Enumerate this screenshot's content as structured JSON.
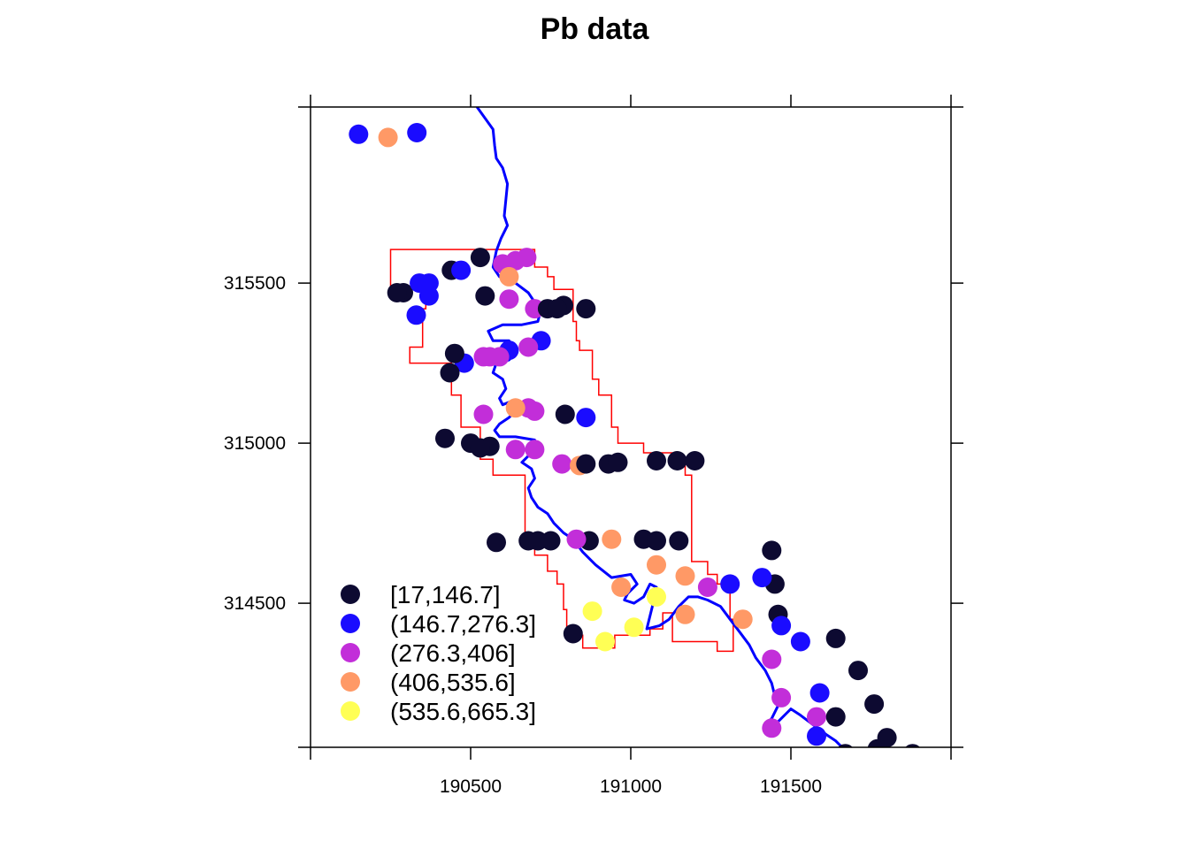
{
  "chart_data": {
    "type": "scatter",
    "title": "Pb data",
    "xlabel": "",
    "ylabel": "",
    "xlim": [
      190000,
      192000
    ],
    "ylim": [
      314050,
      316050
    ],
    "xticks": [
      190500,
      191000,
      191500
    ],
    "yticks": [
      314500,
      315000,
      315500
    ],
    "xtick_labels": [
      "190500",
      "191000",
      "191500"
    ],
    "ytick_labels": [
      "314500",
      "315000",
      "315500"
    ],
    "grid": false,
    "legend_position": "bottom-left",
    "classes": [
      {
        "label": "[17,146.7]",
        "color": "#0d0a31"
      },
      {
        "label": "(146.7,276.3]",
        "color": "#1a0cff"
      },
      {
        "label": "(276.3,406]",
        "color": "#c22ed9"
      },
      {
        "label": "(406,535.6]",
        "color": "#ff9966"
      },
      {
        "label": "(535.6,665.3]",
        "color": "#ffff55"
      }
    ],
    "points": [
      {
        "x": 190150,
        "y": 315965,
        "c": 1
      },
      {
        "x": 190332,
        "y": 315970,
        "c": 1
      },
      {
        "x": 190242,
        "y": 315955,
        "c": 3
      },
      {
        "x": 190530,
        "y": 315580,
        "c": 0
      },
      {
        "x": 190440,
        "y": 315540,
        "c": 0
      },
      {
        "x": 190290,
        "y": 315470,
        "c": 0
      },
      {
        "x": 190270,
        "y": 315470,
        "c": 0
      },
      {
        "x": 190545,
        "y": 315460,
        "c": 0
      },
      {
        "x": 190340,
        "y": 315500,
        "c": 1
      },
      {
        "x": 190370,
        "y": 315500,
        "c": 1
      },
      {
        "x": 190470,
        "y": 315540,
        "c": 1
      },
      {
        "x": 190370,
        "y": 315460,
        "c": 1
      },
      {
        "x": 190330,
        "y": 315400,
        "c": 1
      },
      {
        "x": 190600,
        "y": 315560,
        "c": 2
      },
      {
        "x": 190640,
        "y": 315570,
        "c": 2
      },
      {
        "x": 190675,
        "y": 315580,
        "c": 2
      },
      {
        "x": 190620,
        "y": 315450,
        "c": 2
      },
      {
        "x": 190700,
        "y": 315420,
        "c": 2
      },
      {
        "x": 190620,
        "y": 315520,
        "c": 3
      },
      {
        "x": 190790,
        "y": 315430,
        "c": 0
      },
      {
        "x": 190740,
        "y": 315420,
        "c": 0
      },
      {
        "x": 190770,
        "y": 315420,
        "c": 0
      },
      {
        "x": 190860,
        "y": 315420,
        "c": 0
      },
      {
        "x": 190720,
        "y": 315320,
        "c": 1
      },
      {
        "x": 190620,
        "y": 315290,
        "c": 1
      },
      {
        "x": 190480,
        "y": 315250,
        "c": 1
      },
      {
        "x": 190540,
        "y": 315270,
        "c": 2
      },
      {
        "x": 190590,
        "y": 315270,
        "c": 2
      },
      {
        "x": 190560,
        "y": 315270,
        "c": 2
      },
      {
        "x": 190680,
        "y": 315300,
        "c": 2
      },
      {
        "x": 190435,
        "y": 315220,
        "c": 0
      },
      {
        "x": 190450,
        "y": 315280,
        "c": 0
      },
      {
        "x": 190540,
        "y": 315090,
        "c": 2
      },
      {
        "x": 190680,
        "y": 315110,
        "c": 2
      },
      {
        "x": 190700,
        "y": 315100,
        "c": 2
      },
      {
        "x": 190640,
        "y": 315110,
        "c": 3
      },
      {
        "x": 190795,
        "y": 315090,
        "c": 0
      },
      {
        "x": 190860,
        "y": 315080,
        "c": 1
      },
      {
        "x": 190420,
        "y": 315015,
        "c": 0
      },
      {
        "x": 190500,
        "y": 315000,
        "c": 0
      },
      {
        "x": 190560,
        "y": 314990,
        "c": 0
      },
      {
        "x": 190530,
        "y": 314985,
        "c": 0
      },
      {
        "x": 190640,
        "y": 314980,
        "c": 2
      },
      {
        "x": 190700,
        "y": 314980,
        "c": 2
      },
      {
        "x": 190785,
        "y": 314935,
        "c": 2
      },
      {
        "x": 190840,
        "y": 314930,
        "c": 3
      },
      {
        "x": 190860,
        "y": 314935,
        "c": 0
      },
      {
        "x": 190930,
        "y": 314935,
        "c": 0
      },
      {
        "x": 190960,
        "y": 314940,
        "c": 0
      },
      {
        "x": 191080,
        "y": 314945,
        "c": 0
      },
      {
        "x": 191145,
        "y": 314945,
        "c": 0
      },
      {
        "x": 191200,
        "y": 314945,
        "c": 0
      },
      {
        "x": 190580,
        "y": 314690,
        "c": 0
      },
      {
        "x": 190680,
        "y": 314695,
        "c": 0
      },
      {
        "x": 190710,
        "y": 314695,
        "c": 0
      },
      {
        "x": 190750,
        "y": 314695,
        "c": 0
      },
      {
        "x": 190870,
        "y": 314695,
        "c": 0
      },
      {
        "x": 191040,
        "y": 314700,
        "c": 0
      },
      {
        "x": 191080,
        "y": 314695,
        "c": 0
      },
      {
        "x": 191150,
        "y": 314695,
        "c": 0
      },
      {
        "x": 190830,
        "y": 314700,
        "c": 2
      },
      {
        "x": 190940,
        "y": 314700,
        "c": 3
      },
      {
        "x": 191440,
        "y": 314665,
        "c": 0
      },
      {
        "x": 191450,
        "y": 314560,
        "c": 0
      },
      {
        "x": 191310,
        "y": 314560,
        "c": 1
      },
      {
        "x": 191410,
        "y": 314580,
        "c": 1
      },
      {
        "x": 191080,
        "y": 314620,
        "c": 3
      },
      {
        "x": 191170,
        "y": 314585,
        "c": 3
      },
      {
        "x": 190970,
        "y": 314550,
        "c": 3
      },
      {
        "x": 191240,
        "y": 314550,
        "c": 2
      },
      {
        "x": 191080,
        "y": 314520,
        "c": 4
      },
      {
        "x": 190880,
        "y": 314475,
        "c": 4
      },
      {
        "x": 191010,
        "y": 314425,
        "c": 4
      },
      {
        "x": 190920,
        "y": 314380,
        "c": 4
      },
      {
        "x": 191170,
        "y": 314465,
        "c": 3
      },
      {
        "x": 191350,
        "y": 314450,
        "c": 3
      },
      {
        "x": 190820,
        "y": 314405,
        "c": 0
      },
      {
        "x": 191460,
        "y": 314465,
        "c": 0
      },
      {
        "x": 191470,
        "y": 314430,
        "c": 1
      },
      {
        "x": 191530,
        "y": 314380,
        "c": 1
      },
      {
        "x": 191640,
        "y": 314390,
        "c": 0
      },
      {
        "x": 191710,
        "y": 314290,
        "c": 0
      },
      {
        "x": 191440,
        "y": 314325,
        "c": 2
      },
      {
        "x": 191470,
        "y": 314205,
        "c": 2
      },
      {
        "x": 191580,
        "y": 314145,
        "c": 2
      },
      {
        "x": 191440,
        "y": 314110,
        "c": 2
      },
      {
        "x": 191590,
        "y": 314220,
        "c": 1
      },
      {
        "x": 191580,
        "y": 314085,
        "c": 1
      },
      {
        "x": 191500,
        "y": 314015,
        "c": 1
      },
      {
        "x": 191640,
        "y": 314145,
        "c": 0
      },
      {
        "x": 191760,
        "y": 314185,
        "c": 0
      },
      {
        "x": 191800,
        "y": 314080,
        "c": 0
      },
      {
        "x": 191770,
        "y": 314045,
        "c": 0
      },
      {
        "x": 191670,
        "y": 314030,
        "c": 0
      },
      {
        "x": 191880,
        "y": 314030,
        "c": 0
      }
    ],
    "river": [
      [
        190520,
        316050
      ],
      [
        190570,
        315980
      ],
      [
        190575,
        315930
      ],
      [
        190580,
        315890
      ],
      [
        190600,
        315860
      ],
      [
        190615,
        315810
      ],
      [
        190610,
        315760
      ],
      [
        190605,
        315710
      ],
      [
        190615,
        315680
      ],
      [
        190595,
        315640
      ],
      [
        190580,
        315600
      ],
      [
        190570,
        315550
      ],
      [
        190590,
        315520
      ],
      [
        190640,
        315500
      ],
      [
        190680,
        315470
      ],
      [
        190700,
        315440
      ],
      [
        190720,
        315420
      ],
      [
        190710,
        315380
      ],
      [
        190660,
        315370
      ],
      [
        190600,
        315370
      ],
      [
        190555,
        315350
      ],
      [
        190570,
        315320
      ],
      [
        190620,
        315320
      ],
      [
        190645,
        315290
      ],
      [
        190620,
        315260
      ],
      [
        190580,
        315250
      ],
      [
        190570,
        315220
      ],
      [
        190600,
        315200
      ],
      [
        190610,
        315170
      ],
      [
        190590,
        315140
      ],
      [
        190600,
        315120
      ],
      [
        190625,
        315130
      ],
      [
        190640,
        315100
      ],
      [
        190620,
        315080
      ],
      [
        190590,
        315060
      ],
      [
        190575,
        315040
      ],
      [
        190590,
        315020
      ],
      [
        190640,
        315020
      ],
      [
        190700,
        315010
      ],
      [
        190710,
        314990
      ],
      [
        190680,
        314960
      ],
      [
        190660,
        314940
      ],
      [
        190690,
        314920
      ],
      [
        190700,
        314890
      ],
      [
        190680,
        314860
      ],
      [
        190690,
        314830
      ],
      [
        190710,
        314800
      ],
      [
        190740,
        314780
      ],
      [
        190760,
        314750
      ],
      [
        190790,
        314720
      ],
      [
        190820,
        314700
      ],
      [
        190850,
        314660
      ],
      [
        190890,
        314620
      ],
      [
        190940,
        314580
      ],
      [
        191000,
        314590
      ],
      [
        191020,
        314560
      ],
      [
        190990,
        314530
      ],
      [
        190980,
        314510
      ],
      [
        191010,
        314500
      ],
      [
        191040,
        314520
      ],
      [
        191060,
        314560
      ],
      [
        191080,
        314550
      ],
      [
        191070,
        314500
      ],
      [
        191060,
        314460
      ],
      [
        191050,
        314420
      ],
      [
        191090,
        314430
      ],
      [
        191120,
        314450
      ],
      [
        191150,
        314490
      ],
      [
        191180,
        314520
      ],
      [
        191210,
        314520
      ],
      [
        191240,
        314510
      ],
      [
        191280,
        314490
      ],
      [
        191310,
        314450
      ],
      [
        191340,
        314410
      ],
      [
        191370,
        314370
      ],
      [
        191390,
        314330
      ],
      [
        191420,
        314290
      ],
      [
        191440,
        314250
      ],
      [
        191450,
        314210
      ],
      [
        191460,
        314180
      ],
      [
        191440,
        314140
      ],
      [
        191420,
        314120
      ],
      [
        191440,
        314110
      ],
      [
        191470,
        314140
      ],
      [
        191500,
        314170
      ],
      [
        191530,
        314150
      ],
      [
        191570,
        314120
      ],
      [
        191610,
        314090
      ],
      [
        191640,
        314070
      ],
      [
        191660,
        314050
      ]
    ],
    "boundary": [
      [
        190250,
        315605
      ],
      [
        190700,
        315605
      ],
      [
        190700,
        315550
      ],
      [
        190740,
        315550
      ],
      [
        190740,
        315520
      ],
      [
        190760,
        315520
      ],
      [
        190760,
        315480
      ],
      [
        190820,
        315480
      ],
      [
        190820,
        315380
      ],
      [
        190830,
        315380
      ],
      [
        190830,
        315320
      ],
      [
        190840,
        315320
      ],
      [
        190840,
        315290
      ],
      [
        190880,
        315290
      ],
      [
        190880,
        315200
      ],
      [
        190900,
        315200
      ],
      [
        190900,
        315150
      ],
      [
        190940,
        315150
      ],
      [
        190940,
        315050
      ],
      [
        190960,
        315050
      ],
      [
        190960,
        315000
      ],
      [
        191040,
        315000
      ],
      [
        191040,
        314970
      ],
      [
        191140,
        314970
      ],
      [
        191140,
        314940
      ],
      [
        191170,
        314940
      ],
      [
        191170,
        314900
      ],
      [
        191190,
        314900
      ],
      [
        191190,
        314630
      ],
      [
        191240,
        314630
      ],
      [
        191240,
        314590
      ],
      [
        191270,
        314590
      ],
      [
        191270,
        314560
      ],
      [
        191310,
        314560
      ],
      [
        191310,
        314450
      ],
      [
        191320,
        314450
      ],
      [
        191320,
        314350
      ],
      [
        191270,
        314350
      ],
      [
        191270,
        314380
      ],
      [
        191130,
        314380
      ],
      [
        191130,
        314470
      ],
      [
        191100,
        314470
      ],
      [
        191100,
        314420
      ],
      [
        191060,
        314420
      ],
      [
        191060,
        314400
      ],
      [
        190950,
        314400
      ],
      [
        190950,
        314360
      ],
      [
        190850,
        314360
      ],
      [
        190850,
        314400
      ],
      [
        190800,
        314400
      ],
      [
        190800,
        314480
      ],
      [
        190790,
        314480
      ],
      [
        190790,
        314560
      ],
      [
        190770,
        314560
      ],
      [
        190770,
        314600
      ],
      [
        190740,
        314600
      ],
      [
        190740,
        314650
      ],
      [
        190700,
        314650
      ],
      [
        190700,
        314700
      ],
      [
        190670,
        314700
      ],
      [
        190670,
        314900
      ],
      [
        190570,
        314900
      ],
      [
        190570,
        314950
      ],
      [
        190530,
        314950
      ],
      [
        190530,
        315050
      ],
      [
        190470,
        315050
      ],
      [
        190470,
        315150
      ],
      [
        190440,
        315150
      ],
      [
        190440,
        315250
      ],
      [
        190310,
        315250
      ],
      [
        190310,
        315300
      ],
      [
        190350,
        315300
      ],
      [
        190350,
        315420
      ],
      [
        190360,
        315420
      ],
      [
        190360,
        315480
      ],
      [
        190250,
        315480
      ],
      [
        190250,
        315605
      ]
    ]
  }
}
